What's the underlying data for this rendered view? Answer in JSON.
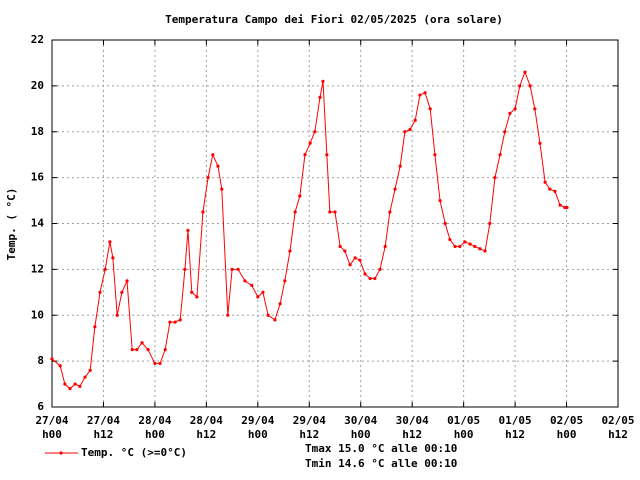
{
  "chart_data": {
    "type": "line",
    "title": "Temperatura Campo dei Fiori 02/05/2025 (ora solare)",
    "y_label": "Temp. ( °C)",
    "annotations": [
      "Tmax 15.0 °C alle 00:10",
      "Tmin 14.6 °C alle 00:10"
    ],
    "xlim": [
      0,
      132
    ],
    "ylim": [
      6,
      22
    ],
    "yticks": [
      6,
      8,
      10,
      12,
      14,
      16,
      18,
      20,
      22
    ],
    "xticks": [
      {
        "value": 0,
        "label": "27/04",
        "hour": "h00"
      },
      {
        "value": 12,
        "label": "27/04",
        "hour": "h12"
      },
      {
        "value": 24,
        "label": "28/04",
        "hour": "h00"
      },
      {
        "value": 36,
        "label": "28/04",
        "hour": "h12"
      },
      {
        "value": 48,
        "label": "29/04",
        "hour": "h00"
      },
      {
        "value": 60,
        "label": "29/04",
        "hour": "h12"
      },
      {
        "value": 72,
        "label": "30/04",
        "hour": "h00"
      },
      {
        "value": 84,
        "label": "30/04",
        "hour": "h12"
      },
      {
        "value": 96,
        "label": "01/05",
        "hour": "h00"
      },
      {
        "value": 108,
        "label": "01/05",
        "hour": "h12"
      },
      {
        "value": 120,
        "label": "02/05",
        "hour": "h00"
      },
      {
        "value": 132,
        "label": "02/05",
        "hour": "h12"
      }
    ],
    "grid": true,
    "x": [
      0,
      1.9,
      3.0,
      4.2,
      5.4,
      6.5,
      7.7,
      8.9,
      10.0,
      11.2,
      12.4,
      13.5,
      14.2,
      15.2,
      16.3,
      17.5,
      18.7,
      19.8,
      21.0,
      22.4,
      24.0,
      25.2,
      26.4,
      27.5,
      28.7,
      29.9,
      31.0,
      31.7,
      32.6,
      33.8,
      35.2,
      36.4,
      37.5,
      38.7,
      39.6,
      41.0,
      42.0,
      43.4,
      45.0,
      46.6,
      48.0,
      49.2,
      50.4,
      52.0,
      53.2,
      54.3,
      55.5,
      56.7,
      57.8,
      59.0,
      60.2,
      61.3,
      62.5,
      63.2,
      64.1,
      64.8,
      66.0,
      67.2,
      68.3,
      69.5,
      70.7,
      71.8,
      73.0,
      74.2,
      75.3,
      76.5,
      77.7,
      78.8,
      80.0,
      81.2,
      82.3,
      83.5,
      84.7,
      85.8,
      87.0,
      88.2,
      89.3,
      90.5,
      91.7,
      92.8,
      94.0,
      95.1,
      96.3,
      97.5,
      98.6,
      99.8,
      101.0,
      102.1,
      103.3,
      104.5,
      105.6,
      106.8,
      108.0,
      109.1,
      110.3,
      111.5,
      112.6,
      113.8,
      115.0,
      116.1,
      117.3,
      118.5,
      119.6,
      120.1
    ],
    "series": [
      {
        "name": "Temp. °C (>=0°C)",
        "color": "#ff0000",
        "values": [
          8.1,
          7.8,
          7.0,
          6.8,
          7.0,
          6.9,
          7.3,
          7.6,
          9.5,
          11.0,
          12.0,
          13.2,
          12.5,
          10.0,
          11.0,
          11.5,
          8.5,
          8.5,
          8.8,
          8.5,
          7.9,
          7.9,
          8.5,
          9.7,
          9.7,
          9.8,
          12.0,
          13.7,
          11.0,
          10.8,
          14.5,
          16.0,
          17.0,
          16.5,
          15.5,
          10.0,
          12.0,
          12.0,
          11.5,
          11.3,
          10.8,
          11.0,
          10.0,
          9.8,
          10.5,
          11.5,
          12.8,
          14.5,
          15.2,
          17.0,
          17.5,
          18.0,
          19.5,
          20.2,
          17.0,
          14.5,
          14.5,
          13.0,
          12.8,
          12.2,
          12.5,
          12.4,
          11.8,
          11.6,
          11.6,
          12.0,
          13.0,
          14.5,
          15.5,
          16.5,
          18.0,
          18.1,
          18.5,
          19.6,
          19.7,
          19.0,
          17.0,
          15.0,
          14.0,
          13.3,
          13.0,
          13.0,
          13.2,
          13.1,
          13.0,
          12.9,
          12.8,
          14.0,
          16.0,
          17.0,
          18.0,
          18.8,
          19.0,
          20.0,
          20.6,
          20.0,
          19.0,
          17.5,
          15.8,
          15.5,
          15.4,
          14.8,
          14.7,
          14.7
        ]
      }
    ]
  }
}
